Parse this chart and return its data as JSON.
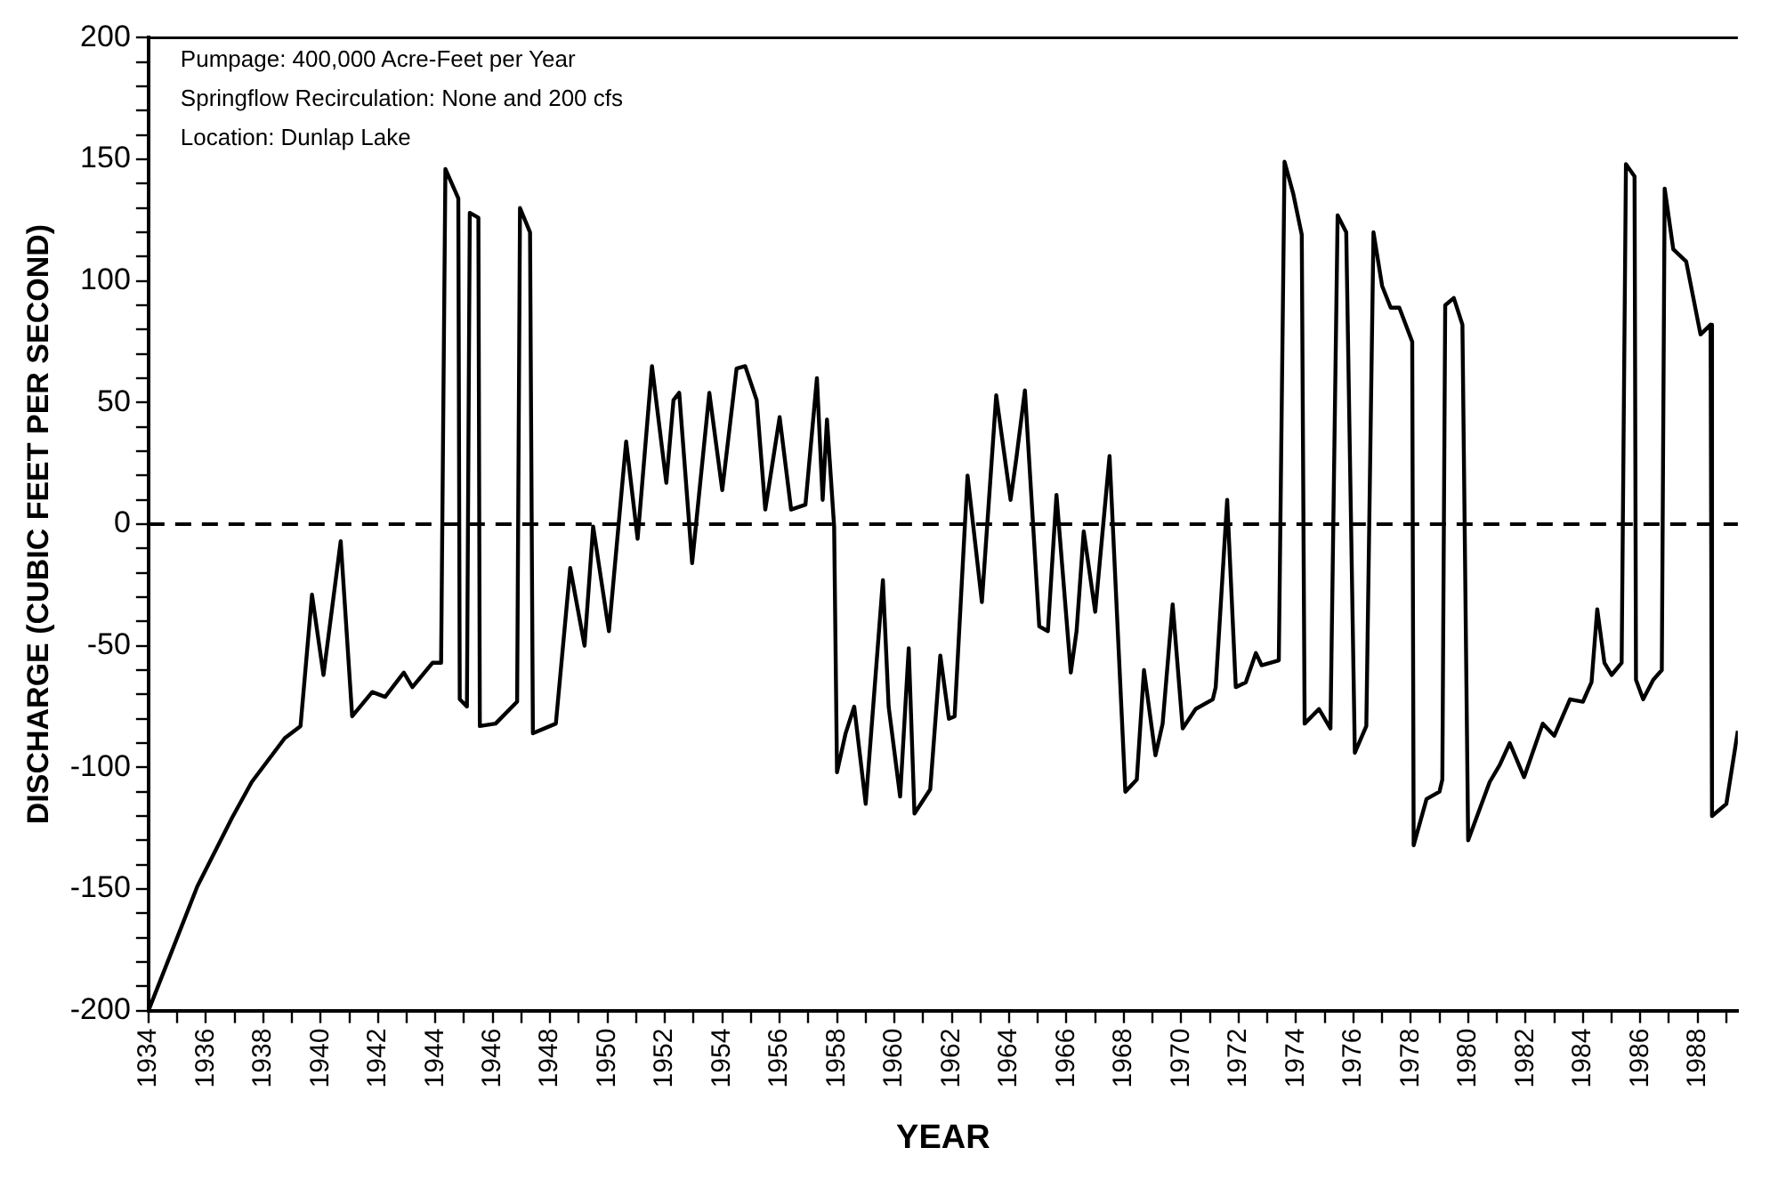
{
  "chart_data": {
    "type": "line",
    "xlabel": "YEAR",
    "ylabel": "DISCHARGE (CUBIC FEET PER SECOND)",
    "annotations": [
      "Pumpage: 400,000 Acre-Feet per Year",
      "Springflow Recirculation: None and 200 cfs",
      "Location: Dunlap Lake"
    ],
    "x": [
      1934.0,
      1935.7,
      1936.9,
      1937.6,
      1938.75,
      1939.3,
      1939.7,
      1940.1,
      1940.7,
      1941.1,
      1941.8,
      1942.25,
      1942.9,
      1943.2,
      1943.9,
      1944.2,
      1944.35,
      1944.8,
      1944.85,
      1945.1,
      1945.2,
      1945.5,
      1945.55,
      1946.1,
      1946.85,
      1946.95,
      1947.3,
      1947.4,
      1948.2,
      1948.7,
      1949.2,
      1949.5,
      1950.05,
      1950.65,
      1951.05,
      1951.55,
      1952.05,
      1952.3,
      1952.5,
      1952.95,
      1953.55,
      1954.0,
      1954.5,
      1954.8,
      1955.2,
      1955.5,
      1956.0,
      1956.4,
      1956.9,
      1957.3,
      1957.5,
      1957.65,
      1957.9,
      1958.0,
      1958.3,
      1958.6,
      1959.0,
      1959.6,
      1959.8,
      1960.2,
      1960.5,
      1960.7,
      1961.25,
      1961.6,
      1961.9,
      1962.1,
      1962.55,
      1963.05,
      1963.55,
      1964.05,
      1964.25,
      1964.55,
      1965.05,
      1965.35,
      1965.65,
      1966.15,
      1966.35,
      1966.6,
      1967.0,
      1967.5,
      1968.05,
      1968.45,
      1968.7,
      1969.1,
      1969.35,
      1969.7,
      1970.05,
      1970.5,
      1971.1,
      1971.2,
      1971.6,
      1971.9,
      1972.25,
      1972.6,
      1972.8,
      1973.4,
      1973.6,
      1973.9,
      1974.2,
      1974.3,
      1974.8,
      1975.2,
      1975.45,
      1975.75,
      1976.05,
      1976.45,
      1976.7,
      1977.0,
      1977.3,
      1977.6,
      1978.05,
      1978.1,
      1978.55,
      1979.0,
      1979.1,
      1979.2,
      1979.5,
      1979.8,
      1980.0,
      1980.75,
      1981.1,
      1981.45,
      1981.95,
      1982.6,
      1983.0,
      1983.55,
      1984.0,
      1984.3,
      1984.5,
      1984.75,
      1985.0,
      1985.35,
      1985.5,
      1985.8,
      1985.85,
      1986.1,
      1986.45,
      1986.75,
      1986.85,
      1987.15,
      1987.6,
      1988.1,
      1988.45,
      1988.5,
      1989.0,
      1989.4
    ],
    "series": [
      {
        "color": "#000000",
        "values": [
          -200,
          -149,
          -121,
          -106,
          -88,
          -83,
          -29,
          -62,
          -7,
          -79,
          -69,
          -71,
          -61,
          -67,
          -57,
          -57,
          146,
          134,
          -72,
          -75,
          128,
          126,
          -83,
          -82,
          -73,
          130,
          120,
          -86,
          -82,
          -18,
          -50,
          -1,
          -44,
          34,
          -6,
          65,
          17,
          51,
          54,
          -16,
          54,
          14,
          64,
          65,
          51,
          6,
          44,
          6,
          8,
          60,
          10,
          43,
          -1,
          -102,
          -86,
          -75,
          -115,
          -23,
          -75,
          -112,
          -51,
          -119,
          -109,
          -54,
          -80,
          -79,
          20,
          -32,
          53,
          10,
          27,
          55,
          -42,
          -44,
          12,
          -61,
          -44,
          -3,
          -36,
          28,
          -110,
          -105,
          -60,
          -95,
          -82,
          -33,
          -84,
          -76,
          -72,
          -67,
          10,
          -67,
          -65,
          -53,
          -58,
          -56,
          149,
          136,
          119,
          -82,
          -76,
          -84,
          127,
          120,
          -94,
          -83,
          120,
          98,
          89,
          89,
          75,
          -132,
          -113,
          -110,
          -105,
          90,
          93,
          82,
          -130,
          -106,
          -99,
          -90,
          -104,
          -82,
          -87,
          -72,
          -73,
          -65,
          -35,
          -57,
          -62,
          -57,
          148,
          143,
          -64,
          -72,
          -64,
          -60,
          138,
          113,
          108,
          78,
          82,
          -120,
          -115,
          -85
        ]
      }
    ],
    "ref_lines": [
      {
        "axis": "y",
        "value": 0,
        "color": "#000000",
        "line_style": "dashed"
      }
    ],
    "xlim": [
      1934,
      1989.4
    ],
    "xticks": [
      1934,
      {
        "value": 1935,
        "label": null
      },
      1936,
      {
        "value": 1937,
        "label": null
      },
      1938,
      {
        "value": 1939,
        "label": null
      },
      1940,
      {
        "value": 1941,
        "label": null
      },
      1942,
      {
        "value": 1943,
        "label": null
      },
      1944,
      {
        "value": 1945,
        "label": null
      },
      1946,
      {
        "value": 1947,
        "label": null
      },
      1948,
      {
        "value": 1949,
        "label": null
      },
      1950,
      {
        "value": 1951,
        "label": null
      },
      1952,
      {
        "value": 1953,
        "label": null
      },
      1954,
      {
        "value": 1955,
        "label": null
      },
      1956,
      {
        "value": 1957,
        "label": null
      },
      1958,
      {
        "value": 1959,
        "label": null
      },
      1960,
      {
        "value": 1961,
        "label": null
      },
      1962,
      {
        "value": 1963,
        "label": null
      },
      1964,
      {
        "value": 1965,
        "label": null
      },
      1966,
      {
        "value": 1967,
        "label": null
      },
      1968,
      {
        "value": 1969,
        "label": null
      },
      1970,
      {
        "value": 1971,
        "label": null
      },
      1972,
      {
        "value": 1973,
        "label": null
      },
      1974,
      {
        "value": 1975,
        "label": null
      },
      1976,
      {
        "value": 1977,
        "label": null
      },
      1978,
      {
        "value": 1979,
        "label": null
      },
      1980,
      {
        "value": 1981,
        "label": null
      },
      1982,
      {
        "value": 1983,
        "label": null
      },
      1984,
      {
        "value": 1985,
        "label": null
      },
      1986,
      {
        "value": 1987,
        "label": null
      },
      1988,
      {
        "value": 1989,
        "label": null
      }
    ],
    "ylim": [
      -200,
      200
    ],
    "yticks": [
      -200,
      {
        "value": -190,
        "label": null
      },
      {
        "value": -180,
        "label": null
      },
      {
        "value": -170,
        "label": null
      },
      {
        "value": -160,
        "label": null
      },
      -150,
      {
        "value": -140,
        "label": null
      },
      {
        "value": -130,
        "label": null
      },
      {
        "value": -120,
        "label": null
      },
      {
        "value": -110,
        "label": null
      },
      -100,
      {
        "value": -90,
        "label": null
      },
      {
        "value": -80,
        "label": null
      },
      {
        "value": -70,
        "label": null
      },
      {
        "value": -60,
        "label": null
      },
      -50,
      {
        "value": -40,
        "label": null
      },
      {
        "value": -30,
        "label": null
      },
      {
        "value": -20,
        "label": null
      },
      {
        "value": -10,
        "label": null
      },
      0,
      {
        "value": 10,
        "label": null
      },
      {
        "value": 20,
        "label": null
      },
      {
        "value": 30,
        "label": null
      },
      {
        "value": 40,
        "label": null
      },
      50,
      {
        "value": 60,
        "label": null
      },
      {
        "value": 70,
        "label": null
      },
      {
        "value": 80,
        "label": null
      },
      {
        "value": 90,
        "label": null
      },
      100,
      {
        "value": 110,
        "label": null
      },
      {
        "value": 120,
        "label": null
      },
      {
        "value": 130,
        "label": null
      },
      {
        "value": 140,
        "label": null
      },
      150,
      {
        "value": 160,
        "label": null
      },
      {
        "value": 170,
        "label": null
      },
      {
        "value": 180,
        "label": null
      },
      {
        "value": 190,
        "label": null
      },
      200
    ],
    "grid": false,
    "legend": false,
    "marker": "none",
    "line_style": "solid"
  }
}
